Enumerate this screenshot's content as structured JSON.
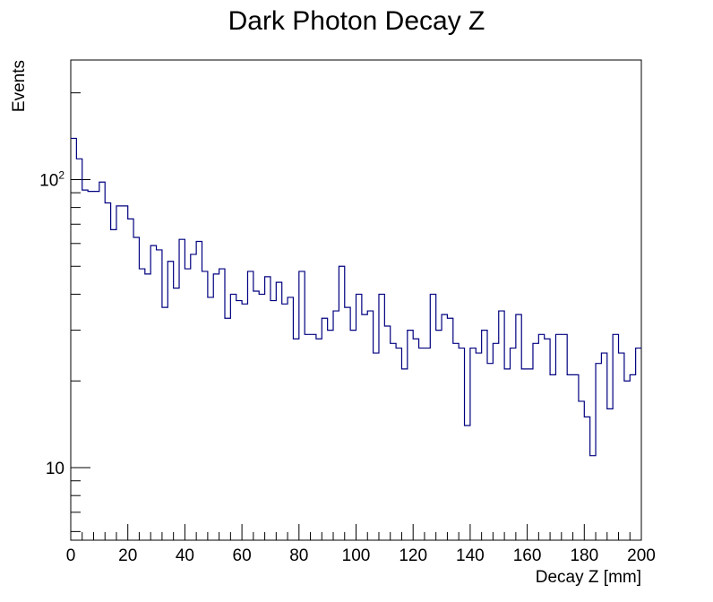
{
  "chart_data": {
    "type": "histogram",
    "title": "Dark Photon Decay Z",
    "xlabel": "Decay Z [mm]",
    "ylabel": "Events",
    "xlim": [
      0,
      200
    ],
    "ylim": [
      5.6,
      260
    ],
    "yscale": "log",
    "bin_width": 2,
    "x_ticks": [
      0,
      20,
      40,
      60,
      80,
      100,
      120,
      140,
      160,
      180,
      200
    ],
    "x_tick_labels": [
      "0",
      "20",
      "40",
      "60",
      "80",
      "100",
      "120",
      "140",
      "160",
      "180",
      "200"
    ],
    "y_tick_labels": [
      {
        "value": 10,
        "base": "10",
        "exp": ""
      },
      {
        "value": 100,
        "base": "10",
        "exp": "2"
      }
    ],
    "values": [
      139,
      118,
      92,
      91,
      91,
      98,
      83,
      67,
      81,
      81,
      73,
      63,
      49,
      47,
      59,
      57,
      36,
      52,
      42,
      62,
      49,
      55,
      61,
      48,
      39,
      47,
      49,
      33,
      40,
      38,
      37,
      48,
      41,
      40,
      46,
      38,
      44,
      37,
      39,
      28,
      48,
      29,
      29,
      28,
      33,
      30,
      35,
      50,
      36,
      30,
      40,
      34,
      35,
      25,
      40,
      31,
      27,
      26,
      22,
      30,
      28,
      26,
      26,
      40,
      30,
      34,
      33,
      27,
      26,
      14,
      26,
      25,
      30,
      23,
      27,
      35,
      22,
      26,
      34,
      22,
      22,
      27,
      29,
      28,
      21,
      29,
      29,
      21,
      21,
      17,
      15,
      11,
      23,
      25,
      16,
      29,
      25,
      20,
      21,
      26
    ],
    "line_color": "#000080"
  }
}
